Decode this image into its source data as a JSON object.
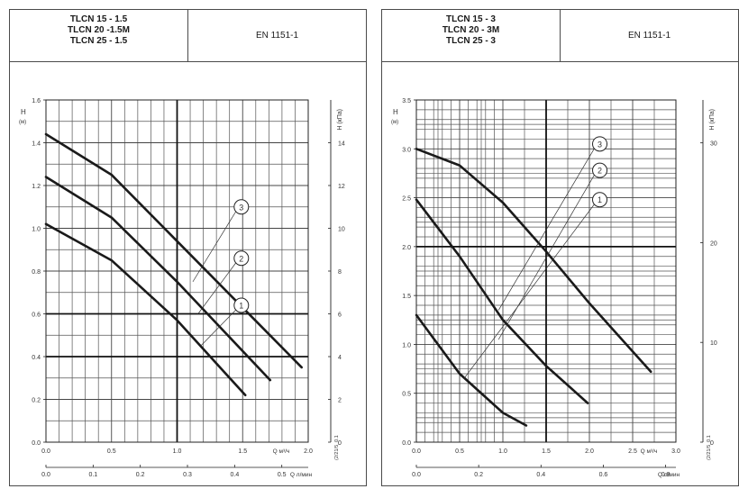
{
  "panels": [
    {
      "models": [
        "TLCN 15 - 1.5",
        "TLCN 20 -1.5M",
        "TLCN 25 - 1.5"
      ],
      "standard": "EN 1151-1",
      "chart_data": {
        "type": "line",
        "ylabel": "H",
        "ylabel_unit": "(м)",
        "y2label": "H (кПа)",
        "xlabel": "Q",
        "xlabel_unit": "м³/ч",
        "x2label": "Q",
        "x2label_unit": "л/мин",
        "xlim": [
          0,
          2.0
        ],
        "ylim": [
          0,
          1.6
        ],
        "x_ticks": [
          "0.0",
          "0.5",
          "1.0",
          "1.5",
          "2.0"
        ],
        "y_ticks": [
          "0.0",
          "0.2",
          "0.4",
          "0.6",
          "0.8",
          "1.0",
          "1.2",
          "1.4",
          "1.6"
        ],
        "y2_ticks": [
          "0",
          "2",
          "4",
          "6",
          "8",
          "10",
          "12",
          "14"
        ],
        "x2_ticks": [
          "0.0",
          "0.1",
          "0.2",
          "0.3",
          "0.4",
          "0.5"
        ],
        "x2_suffix": "Q л/мин",
        "code": "(2/21/5_0.1",
        "series": [
          {
            "name": "1",
            "x": [
              0,
              0.5,
              1.0,
              1.52
            ],
            "y": [
              1.02,
              0.85,
              0.57,
              0.22
            ]
          },
          {
            "name": "2",
            "x": [
              0,
              0.5,
              1.0,
              1.71
            ],
            "y": [
              1.24,
              1.05,
              0.75,
              0.29
            ]
          },
          {
            "name": "3",
            "x": [
              0,
              0.5,
              1.0,
              1.95
            ],
            "y": [
              1.44,
              1.25,
              0.94,
              0.35
            ]
          }
        ],
        "callouts": [
          {
            "name": "3",
            "at": [
              1.49,
              1.1
            ],
            "from": [
              1.12,
              0.75
            ]
          },
          {
            "name": "2",
            "at": [
              1.49,
              0.86
            ],
            "from": [
              1.16,
              0.6
            ]
          },
          {
            "name": "1",
            "at": [
              1.49,
              0.64
            ],
            "from": [
              1.18,
              0.45
            ]
          }
        ]
      }
    },
    {
      "models": [
        "TLCN 15 - 3",
        "TLCN 20 - 3M",
        "TLCN 25 - 3"
      ],
      "standard": "EN 1151-1",
      "chart_data": {
        "type": "line",
        "ylabel": "H",
        "ylabel_unit": "(м)",
        "y2label": "H (кПа)",
        "xlabel": "Q",
        "xlabel_unit": "м³/ч",
        "x2label": "Q",
        "x2label_unit": "л/мин",
        "xlim": [
          0,
          3.0
        ],
        "ylim": [
          0,
          3.5
        ],
        "x_ticks": [
          "0.0",
          "0.5",
          "1.0",
          "1.5",
          "2.0",
          "2.5",
          "3.0"
        ],
        "y_ticks": [
          "0.0",
          "0.5",
          "1.0",
          "1.5",
          "2.0",
          "2.5",
          "3.0",
          "3.5"
        ],
        "y2_ticks": [
          "0",
          "10",
          "20",
          "30"
        ],
        "x2_ticks": [
          "0.0",
          "0.2",
          "0.4",
          "0.6",
          "0.8"
        ],
        "x2_suffix": "Q л/мин",
        "code": "(2/21/5_0.1",
        "series": [
          {
            "name": "1",
            "x": [
              0,
              0.5,
              1.0,
              1.27
            ],
            "y": [
              1.3,
              0.7,
              0.3,
              0.17
            ]
          },
          {
            "name": "2",
            "x": [
              0,
              0.5,
              1.0,
              1.5,
              1.98
            ],
            "y": [
              2.48,
              1.9,
              1.25,
              0.78,
              0.4
            ]
          },
          {
            "name": "3",
            "x": [
              0,
              0.5,
              1.0,
              1.5,
              2.0,
              2.71
            ],
            "y": [
              3.0,
              2.83,
              2.45,
              1.95,
              1.42,
              0.72
            ]
          }
        ],
        "callouts": [
          {
            "name": "3",
            "at": [
              2.12,
              3.05
            ],
            "from": [
              0.95,
              1.35
            ]
          },
          {
            "name": "2",
            "at": [
              2.12,
              2.78
            ],
            "from": [
              0.95,
              1.05
            ]
          },
          {
            "name": "1",
            "at": [
              2.12,
              2.48
            ],
            "from": [
              0.55,
              0.65
            ]
          }
        ]
      }
    }
  ]
}
